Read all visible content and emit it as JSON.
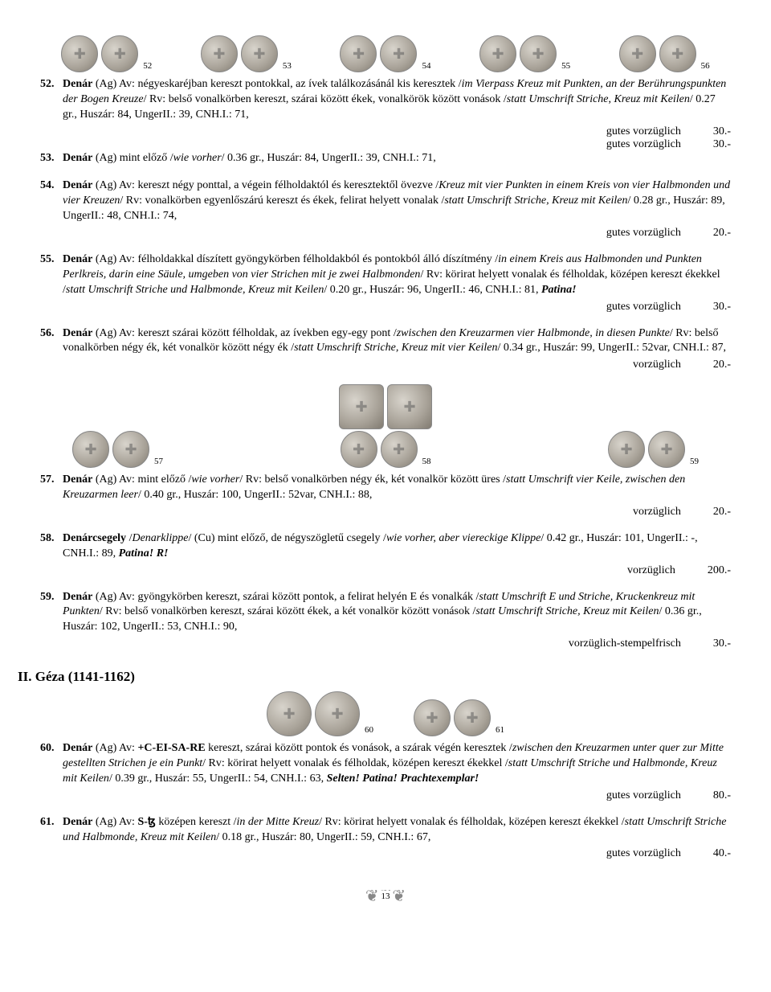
{
  "coin_rows": {
    "row1": [
      {
        "label": "52"
      },
      {
        "label": "53"
      },
      {
        "label": "54"
      },
      {
        "label": "55"
      },
      {
        "label": "56"
      }
    ],
    "row2": [
      {
        "label": "57"
      },
      {
        "label": "58"
      },
      {
        "label": "59"
      }
    ],
    "row3": [
      {
        "label": "60"
      },
      {
        "label": "61"
      }
    ]
  },
  "lots": {
    "52": {
      "num": "52.",
      "bold1": "Denár",
      "t1": " (Ag) Av: négyeskaréjban kereszt pontokkal, az ívek találkozásánál kis keresztek /",
      "it1": "im Vierpass Kreuz mit Punkten, an der Berührungspunkten der Bogen Kreuze",
      "t2": "/ Rv: belső vonalkörben kereszt, szárai között ékek, vonalkörök között vonások /",
      "it2": "statt Umschrift Striche",
      "t3": ", ",
      "it3": "Kreuz mit Keilen",
      "t4": "/ 0.27 gr., Huszár: 84, UngerII.: 39, CNH.I.: 71,",
      "grade": "gutes vorzüglich",
      "price": "30.-"
    },
    "53": {
      "num": "53.",
      "bold1": "Denár",
      "t1": " (Ag) mint előző /",
      "it1": "wie vorher",
      "t2": "/ 0.36 gr., Huszár: 84, UngerII.: 39, CNH.I.: 71,",
      "grade": "gutes vorzüglich",
      "price": "30.-"
    },
    "54": {
      "num": "54.",
      "bold1": "Denár",
      "t1": " (Ag) Av: kereszt négy ponttal, a végein félholdaktól és keresztektől övezve /",
      "it1": "Kreuz mit vier Punkten in einem Kreis von vier Halbmonden und vier Kreuzen",
      "t2": "/ Rv: vonalkörben egyenlőszárú kereszt és ékek, felirat helyett vonalak /",
      "it2": "statt Umschrift Striche, Kreuz mit Keilen",
      "t3": "/ 0.28 gr., Huszár: 89, UngerII.: 48, CNH.I.: 74,",
      "grade": "gutes vorzüglich",
      "price": "20.-"
    },
    "55": {
      "num": "55.",
      "bold1": "Denár",
      "t1": " (Ag) Av: félholdakkal díszített gyöngykörben félholdakból és pontokból álló díszítmény /",
      "it1": "in einem Kreis aus Halbmonden und Punkten Perlkreis, darin eine Säule, umgeben von vier Strichen mit je zwei Halbmonden",
      "t2": "/ Rv: körirat helyett vonalak és félholdak, középen kereszt ékekkel /",
      "it2": "statt Umschrift Striche und Halbmonde, Kreuz mit Keilen",
      "t3": "/ 0.20 gr., Huszár: 96, UngerII.: 46, CNH.I.: 81, ",
      "bi1": "Patina!",
      "grade": "gutes vorzüglich",
      "price": "30.-"
    },
    "56": {
      "num": "56.",
      "bold1": "Denár",
      "t1": " (Ag) Av: kereszt szárai között félholdak, az ívekben egy-egy pont /",
      "it1": "zwischen den Kreuzarmen vier Halbmonde, in diesen Punkte",
      "t2": "/ Rv: belső vonalkörben négy ék, két vonalkör között négy ék /",
      "it2": "statt Umschrift Striche,  Kreuz mit vier Keilen",
      "t3": "/ 0.34 gr., Huszár: 99, UngerII.: 52var, CNH.I.: 87,",
      "grade": "vorzüglich",
      "price": "20.-"
    },
    "57": {
      "num": "57.",
      "bold1": "Denár",
      "t1": " (Ag) Av: mint előző /",
      "it1": "wie vorher",
      "t2": "/ Rv: belső vonalkörben négy ék, két vonalkör között üres /",
      "it2": "statt Umschrift vier Keile, zwischen den Kreuzarmen leer",
      "t3": "/ 0.40 gr., Huszár: 100, UngerII.: 52var, CNH.I.: 88,",
      "grade": "vorzüglich",
      "price": "20.-"
    },
    "58": {
      "num": "58.",
      "bold1": "Denárcsegely",
      "t1": " /",
      "it1": "Denarklippe",
      "t2": "/ (Cu) mint előző, de négyszögletű csegely /",
      "it2": "wie vorher, aber viereckige Klippe",
      "t3": "/ 0.42 gr., Huszár: 101, UngerII.: -, CNH.I.: 89, ",
      "bi1": "Patina! R!",
      "grade": "vorzüglich",
      "price": "200.-"
    },
    "59": {
      "num": "59.",
      "bold1": "Denár",
      "t1": " (Ag) Av: gyöngykörben kereszt, szárai között pontok, a felirat helyén E és vonalkák /",
      "it1": "statt Umschrift E und Striche, Kruckenkreuz mit Punkten",
      "t2": "/ Rv: belső vonalkörben kereszt, szárai között ékek, a két vonalkör között vonások /",
      "it2": "statt Umschrift Striche, Kreuz mit Keilen",
      "t3": "/ 0.36 gr., Huszár: 102, UngerII.: 53, CNH.I.: 90,",
      "grade": "vorzüglich-stempelfrisch",
      "price": "30.-"
    },
    "60": {
      "num": "60.",
      "bold1": "Denár",
      "t1": " (Ag) Av: ",
      "sc1": "+C-EI-SA-RE",
      "t2": " kereszt, szárai között pontok és vonások, a szárak végén keresztek /",
      "it1": "zwischen den Kreuzarmen unter quer zur Mitte gestellten Strichen je ein Punkt",
      "t3": "/ Rv: körirat helyett vonalak és félholdak, középen kereszt ékekkel /",
      "it2": "statt Umschrift Striche und Halbmonde, Kreuz mit Keilen",
      "t4": "/ 0.39 gr., Huszár: 55, UngerII.: 54, CNH.I.: 63, ",
      "bi1": "Selten! Patina! Prachtexemplar!",
      "grade": "gutes vorzüglich",
      "price": "80.-"
    },
    "61": {
      "num": "61.",
      "bold1": "Denár",
      "t1": " (Ag) Av: ",
      "sc1": "S-ꜩ",
      "t2": " középen kereszt /",
      "it1": "in der Mitte Kreuz",
      "t3": "/ Rv: körirat helyett vonalak és félholdak, középen kereszt ékekkel /",
      "it2": "statt Umschrift Striche und Halbmonde, Kreuz mit Keilen",
      "t4": "/ 0.18 gr., Huszár: 80, UngerII.: 59, CNH.I.: 67,",
      "grade": "gutes vorzüglich",
      "price": "40.-"
    }
  },
  "section2": "II. Géza (1141-1162)",
  "page_num": "13"
}
